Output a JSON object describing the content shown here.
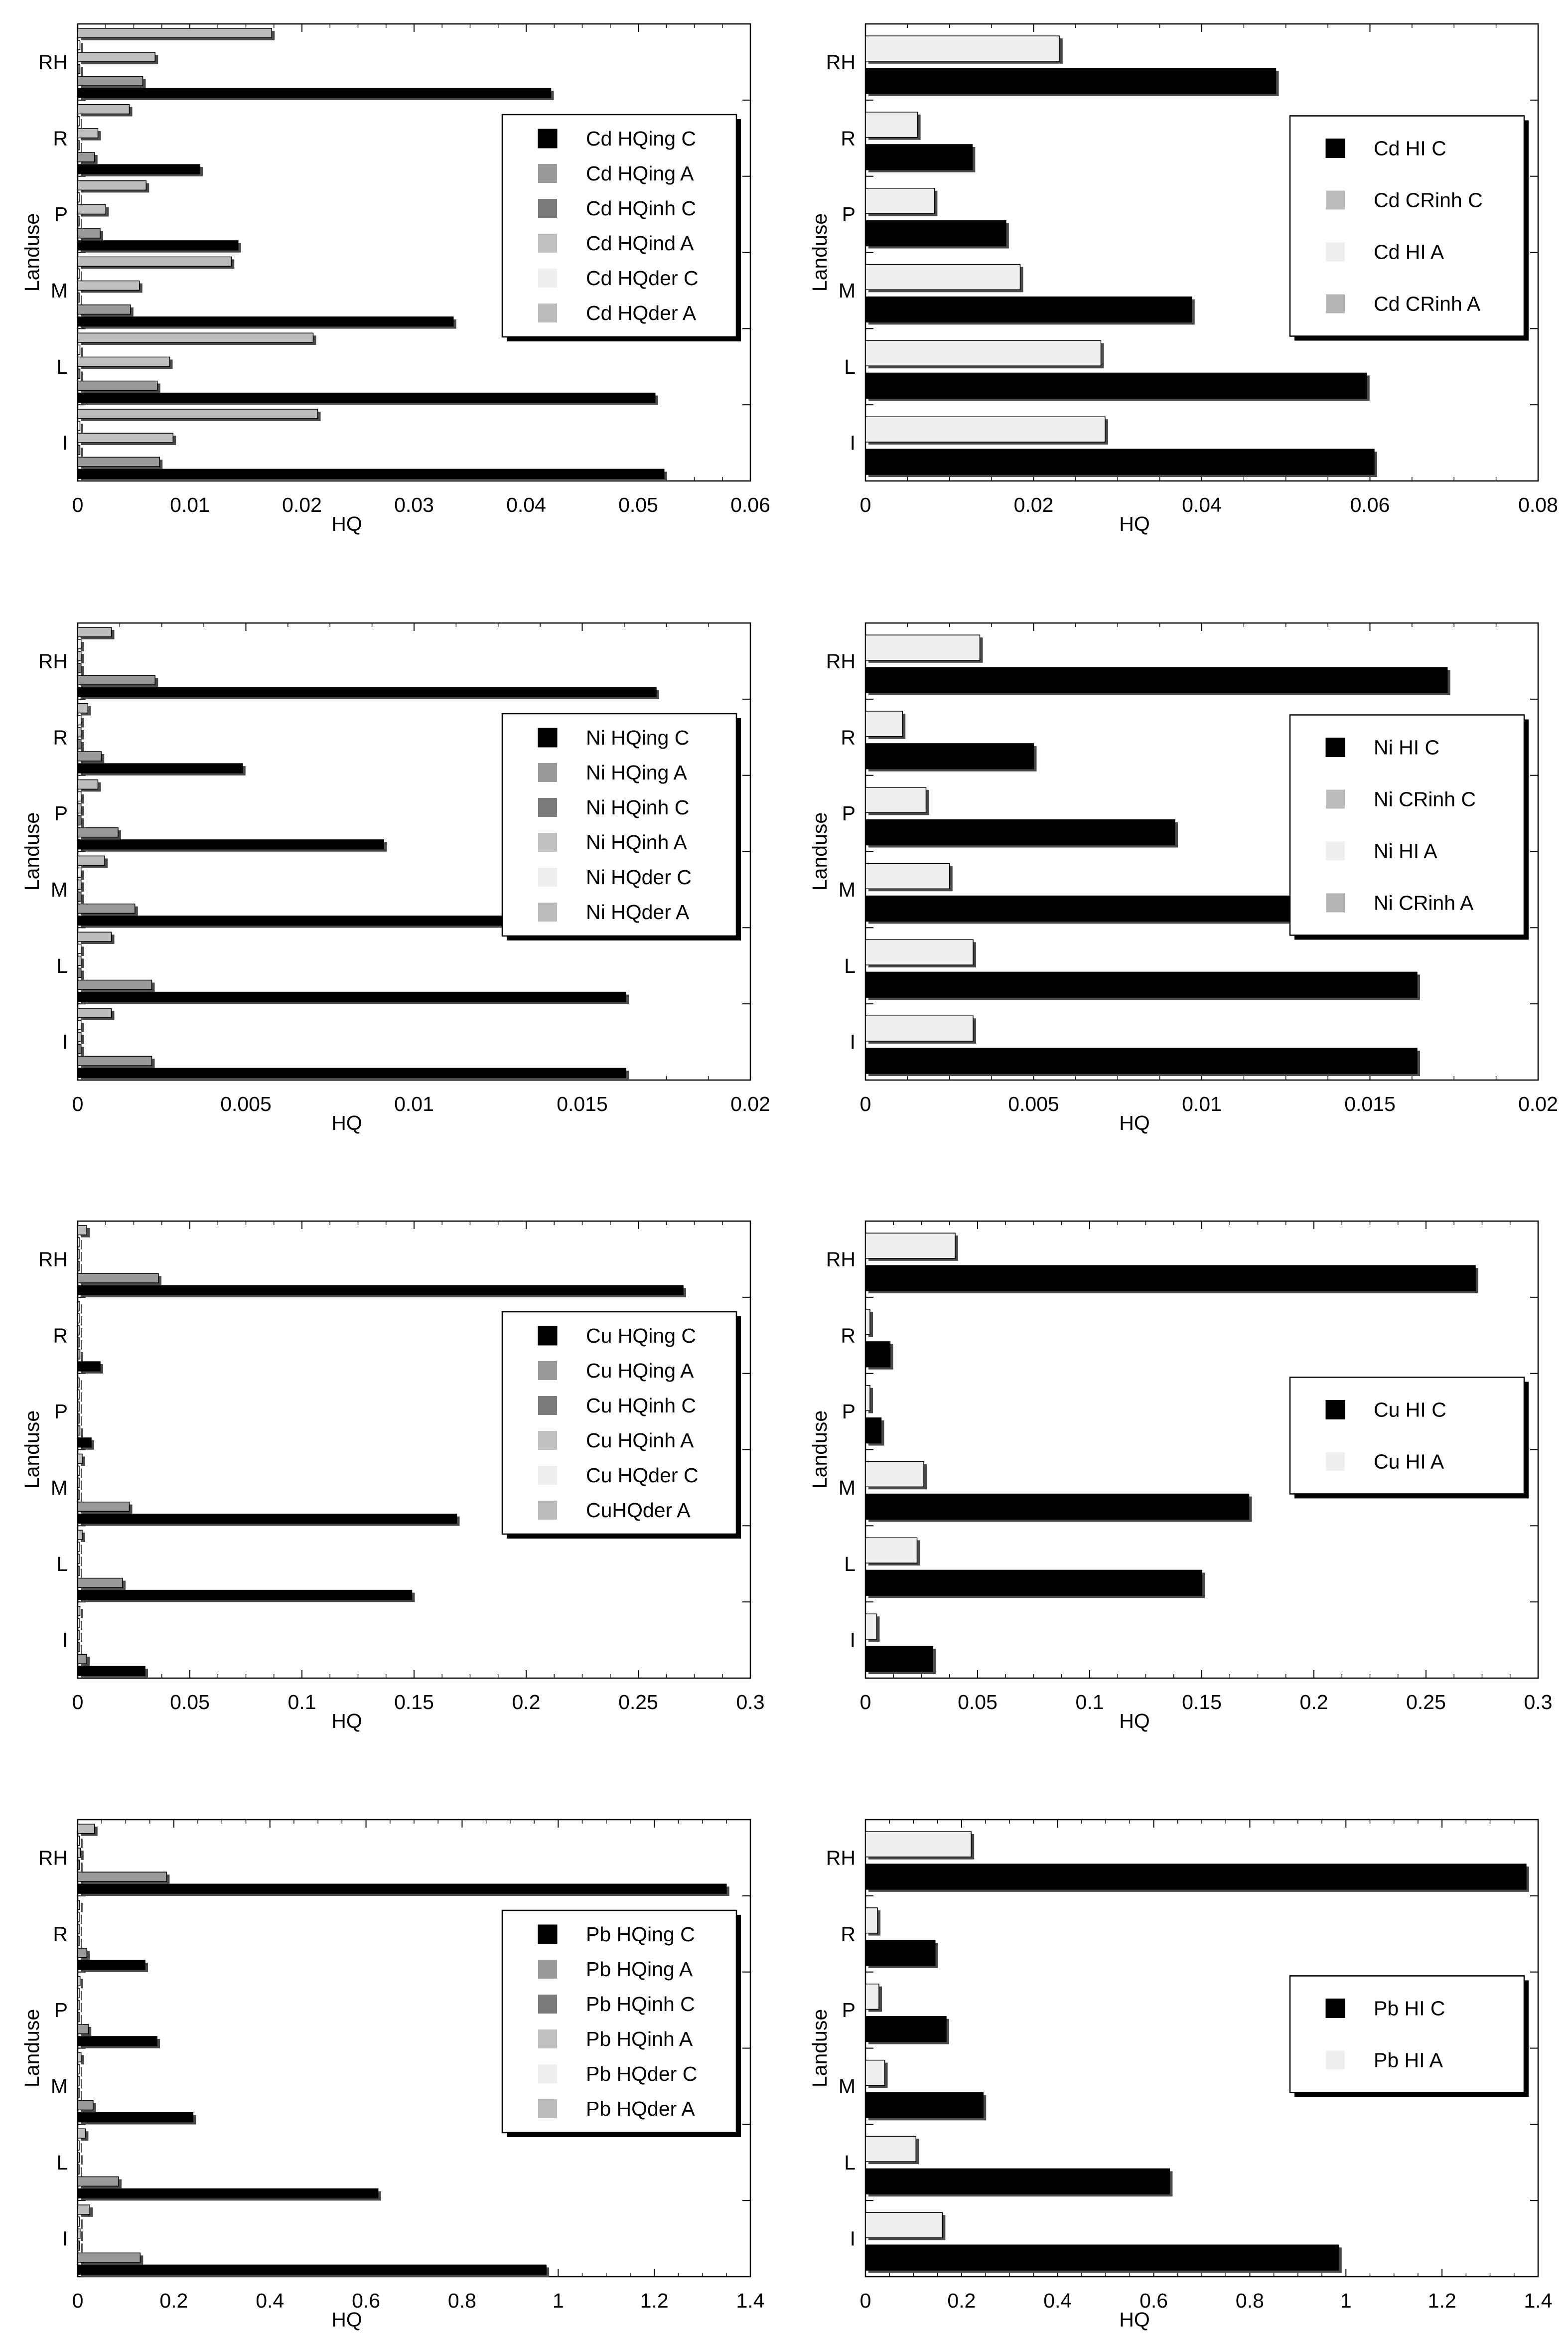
{
  "chart_data": [
    {
      "type": "bar",
      "orientation": "horizontal",
      "metal": "Cd",
      "xlabel": "HQ",
      "ylabel": "Landuse",
      "xlim": [
        0,
        0.06
      ],
      "xticks": [
        "0",
        "0.01",
        "0.02",
        "0.03",
        "0.04",
        "0.05",
        "0.06"
      ],
      "categories": [
        "I",
        "L",
        "M",
        "P",
        "R",
        "RH"
      ],
      "legend_position": "right",
      "series": [
        {
          "name": "Cd HQing C",
          "color": "#000000",
          "values": [
            0.0523,
            0.0515,
            0.0335,
            0.0143,
            0.0109,
            0.0422
          ]
        },
        {
          "name": "Cd HQing A",
          "color": "#9a9a9a",
          "values": [
            0.0073,
            0.0071,
            0.0047,
            0.002,
            0.0015,
            0.0058
          ]
        },
        {
          "name": "Cd HQinh C",
          "color": "#7a7a7a",
          "values": [
            0.0002,
            0.0002,
            0.0001,
            0.0001,
            0.0001,
            0.0002
          ]
        },
        {
          "name": "Cd HQind A",
          "color": "#c0c0c0",
          "values": [
            0.0085,
            0.0082,
            0.0055,
            0.0025,
            0.0018,
            0.0069
          ]
        },
        {
          "name": "Cd HQder C",
          "color": "#efefef",
          "values": [
            0.0002,
            0.0002,
            0.0001,
            0.0001,
            0.0001,
            0.0002
          ]
        },
        {
          "name": "Cd HQder A",
          "color": "#bdbdbd",
          "values": [
            0.0214,
            0.021,
            0.0137,
            0.0061,
            0.0046,
            0.0173
          ]
        }
      ]
    },
    {
      "type": "bar",
      "orientation": "horizontal",
      "metal": "Cd",
      "xlabel": "HQ",
      "ylabel": "Landuse",
      "xlim": [
        0,
        0.08
      ],
      "xticks": [
        "0",
        "0.02",
        "0.04",
        "0.06",
        "0.08"
      ],
      "categories": [
        "I",
        "L",
        "M",
        "P",
        "R",
        "RH"
      ],
      "legend_position": "right",
      "series": [
        {
          "name": "Cd HI C",
          "color": "#000000",
          "values": [
            0.0605,
            0.0596,
            0.0388,
            0.0167,
            0.0127,
            0.0488
          ]
        },
        {
          "name": "Cd CRinh C",
          "color": "#bdbdbd",
          "values": [
            0,
            0,
            0,
            0,
            0,
            0
          ]
        },
        {
          "name": "Cd HI A",
          "color": "#efefef",
          "values": [
            0.0285,
            0.028,
            0.0184,
            0.0082,
            0.0062,
            0.0231
          ]
        },
        {
          "name": "Cd CRinh A",
          "color": "#b5b5b5",
          "values": [
            0,
            0,
            0,
            0,
            0,
            0
          ]
        }
      ]
    },
    {
      "type": "bar",
      "orientation": "horizontal",
      "metal": "Ni",
      "xlabel": "HQ",
      "ylabel": "Landuse",
      "xlim": [
        0,
        0.02
      ],
      "xticks": [
        "0",
        "0.005",
        "0.01",
        "0.015",
        "0.02"
      ],
      "categories": [
        "I",
        "L",
        "M",
        "P",
        "R",
        "RH"
      ],
      "legend_position": "right",
      "series": [
        {
          "name": "Ni HQing C",
          "color": "#000000",
          "values": [
            0.0163,
            0.0163,
            0.0126,
            0.0091,
            0.0049,
            0.0172
          ]
        },
        {
          "name": "Ni HQing A",
          "color": "#9a9a9a",
          "values": [
            0.0022,
            0.0022,
            0.0017,
            0.0012,
            0.0007,
            0.0023
          ]
        },
        {
          "name": "Ni HQinh C",
          "color": "#7a7a7a",
          "values": [
            0.0001,
            0.0001,
            0.0001,
            0.0001,
            0.0001,
            0.0001
          ]
        },
        {
          "name": "Ni HQinh A",
          "color": "#c0c0c0",
          "values": [
            0.0001,
            0.0001,
            0.0001,
            0.0001,
            0.0001,
            0.0001
          ]
        },
        {
          "name": "Ni HQder C",
          "color": "#efefef",
          "values": [
            0.0001,
            0.0001,
            0.0001,
            0.0001,
            0.0001,
            0.0001
          ]
        },
        {
          "name": "Ni HQder A",
          "color": "#bdbdbd",
          "values": [
            0.001,
            0.001,
            0.0008,
            0.0006,
            0.0003,
            0.001
          ]
        }
      ]
    },
    {
      "type": "bar",
      "orientation": "horizontal",
      "metal": "Ni",
      "xlabel": "HQ",
      "ylabel": "Landuse",
      "xlim": [
        0,
        0.02
      ],
      "xticks": [
        "0",
        "0.005",
        "0.01",
        "0.015",
        "0.02"
      ],
      "categories": [
        "I",
        "L",
        "M",
        "P",
        "R",
        "RH"
      ],
      "legend_position": "right",
      "series": [
        {
          "name": "Ni HI C",
          "color": "#000000",
          "values": [
            0.0164,
            0.0164,
            0.0127,
            0.0092,
            0.005,
            0.0173
          ]
        },
        {
          "name": "Ni CRinh C",
          "color": "#bdbdbd",
          "values": [
            0,
            0,
            0,
            0,
            0,
            0
          ]
        },
        {
          "name": "Ni HI A",
          "color": "#efefef",
          "values": [
            0.0032,
            0.0032,
            0.0025,
            0.0018,
            0.0011,
            0.0034
          ]
        },
        {
          "name": "Ni CRinh A",
          "color": "#b5b5b5",
          "values": [
            0,
            0,
            0,
            0,
            0,
            0
          ]
        }
      ]
    },
    {
      "type": "bar",
      "orientation": "horizontal",
      "metal": "Cu",
      "xlabel": "HQ",
      "ylabel": "Landuse",
      "xlim": [
        0,
        0.3
      ],
      "xticks": [
        "0",
        "0.05",
        "0.1",
        "0.15",
        "0.2",
        "0.25",
        "0.3"
      ],
      "categories": [
        "I",
        "L",
        "M",
        "P",
        "R",
        "RH"
      ],
      "legend_position": "right",
      "series": [
        {
          "name": "Cu HQing C",
          "color": "#000000",
          "values": [
            0.03,
            0.149,
            0.169,
            0.006,
            0.01,
            0.27
          ]
        },
        {
          "name": "Cu HQing A",
          "color": "#9a9a9a",
          "values": [
            0.004,
            0.02,
            0.023,
            0.001,
            0.001,
            0.036
          ]
        },
        {
          "name": "Cu HQinh C",
          "color": "#7a7a7a",
          "values": [
            0.0005,
            0.0005,
            0.0005,
            0.0005,
            0.0005,
            0.0005
          ]
        },
        {
          "name": "Cu HQinh A",
          "color": "#c0c0c0",
          "values": [
            0.0005,
            0.0005,
            0.0005,
            0.0005,
            0.0005,
            0.0005
          ]
        },
        {
          "name": "Cu HQder C",
          "color": "#efefef",
          "values": [
            0.0005,
            0.0005,
            0.0005,
            0.0005,
            0.0005,
            0.0005
          ]
        },
        {
          "name": "CuHQder A",
          "color": "#bdbdbd",
          "values": [
            0.001,
            0.002,
            0.002,
            0.0005,
            0.0005,
            0.004
          ]
        }
      ]
    },
    {
      "type": "bar",
      "orientation": "horizontal",
      "metal": "Cu",
      "xlabel": "HQ",
      "ylabel": "Landuse",
      "xlim": [
        0,
        0.3
      ],
      "xticks": [
        "0",
        "0.05",
        "0.1",
        "0.15",
        "0.2",
        "0.25",
        "0.3"
      ],
      "categories": [
        "I",
        "L",
        "M",
        "P",
        "R",
        "RH"
      ],
      "legend_position": "right",
      "series": [
        {
          "name": "Cu HI C",
          "color": "#000000",
          "values": [
            0.03,
            0.15,
            0.171,
            0.007,
            0.011,
            0.272
          ]
        },
        {
          "name": "Cu HI A",
          "color": "#efefef",
          "values": [
            0.005,
            0.023,
            0.026,
            0.002,
            0.002,
            0.04
          ]
        }
      ]
    },
    {
      "type": "bar",
      "orientation": "horizontal",
      "metal": "Pb",
      "xlabel": "HQ",
      "ylabel": "Landuse",
      "xlim": [
        0,
        1.4
      ],
      "xticks": [
        "0",
        "0.2",
        "0.4",
        "0.6",
        "0.8",
        "1",
        "1.2",
        "1.4"
      ],
      "categories": [
        "I",
        "L",
        "M",
        "P",
        "R",
        "RH"
      ],
      "legend_position": "right",
      "series": [
        {
          "name": "Pb HQing C",
          "color": "#000000",
          "values": [
            0.975,
            0.625,
            0.24,
            0.165,
            0.14,
            1.35
          ]
        },
        {
          "name": "Pb HQing A",
          "color": "#9a9a9a",
          "values": [
            0.13,
            0.085,
            0.032,
            0.022,
            0.019,
            0.185
          ]
        },
        {
          "name": "Pb HQinh C",
          "color": "#7a7a7a",
          "values": [
            0.004,
            0.003,
            0.002,
            0.002,
            0.002,
            0.004
          ]
        },
        {
          "name": "Pb HQinh A",
          "color": "#c0c0c0",
          "values": [
            0.005,
            0.004,
            0.002,
            0.002,
            0.002,
            0.006
          ]
        },
        {
          "name": "Pb HQder C",
          "color": "#efefef",
          "values": [
            0.004,
            0.003,
            0.002,
            0.002,
            0.002,
            0.004
          ]
        },
        {
          "name": "Pb HQder A",
          "color": "#bdbdbd",
          "values": [
            0.025,
            0.016,
            0.007,
            0.005,
            0.004,
            0.035
          ]
        }
      ]
    },
    {
      "type": "bar",
      "orientation": "horizontal",
      "metal": "Pb",
      "xlabel": "HQ",
      "ylabel": "Landuse",
      "xlim": [
        0,
        1.4
      ],
      "xticks": [
        "0",
        "0.2",
        "0.4",
        "0.6",
        "0.8",
        "1",
        "1.2",
        "1.4"
      ],
      "categories": [
        "I",
        "L",
        "M",
        "P",
        "R",
        "RH"
      ],
      "legend_position": "right",
      "series": [
        {
          "name": "Pb HI C",
          "color": "#000000",
          "values": [
            0.985,
            0.633,
            0.245,
            0.168,
            0.145,
            1.375
          ]
        },
        {
          "name": "Pb HI A",
          "color": "#efefef",
          "values": [
            0.16,
            0.105,
            0.04,
            0.028,
            0.025,
            0.22
          ]
        }
      ]
    }
  ]
}
